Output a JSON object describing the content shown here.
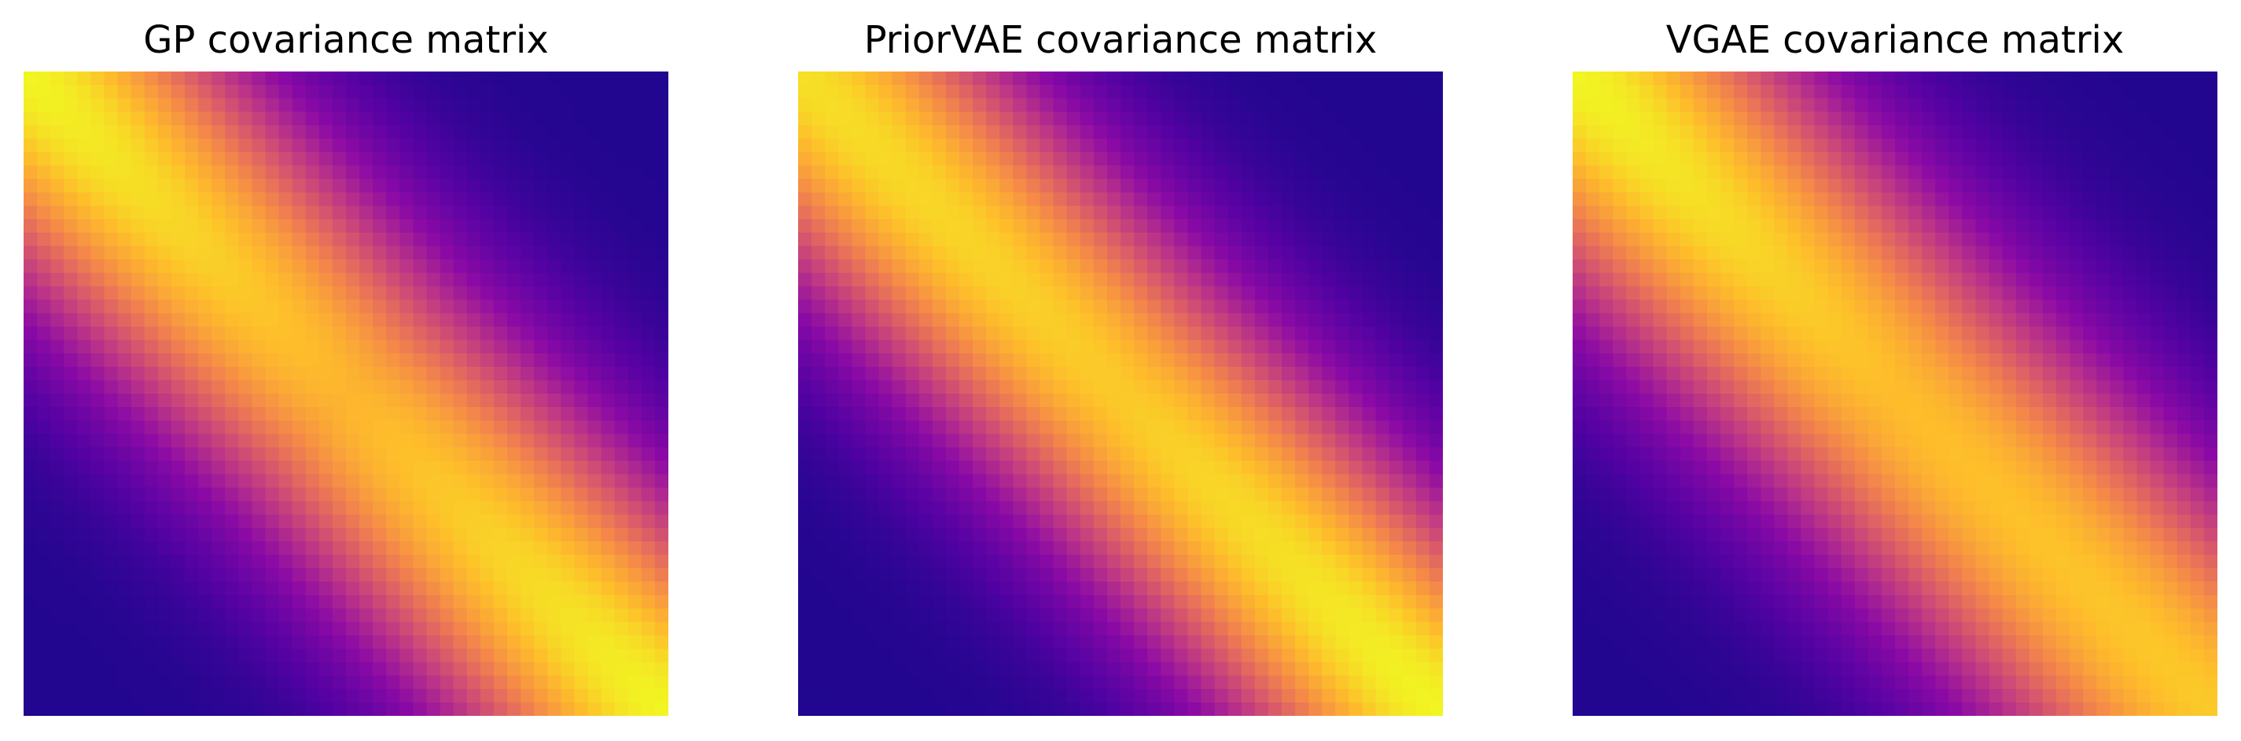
{
  "chart_data": [
    {
      "type": "heatmap",
      "title": "GP covariance matrix",
      "colormap": "plasma",
      "axes_visible": false,
      "matrix_size": 48,
      "value_range": [
        0,
        1
      ],
      "band_width": 0.25,
      "band_strength": [
        0.95,
        0.8,
        0.95
      ]
    },
    {
      "type": "heatmap",
      "title": "PriorVAE covariance matrix",
      "colormap": "plasma",
      "axes_visible": false,
      "matrix_size": 48,
      "value_range": [
        0,
        1
      ],
      "band_width": 0.24,
      "band_strength": [
        0.9,
        0.85,
        0.95
      ]
    },
    {
      "type": "heatmap",
      "title": "VGAE covariance matrix",
      "colormap": "plasma",
      "axes_visible": false,
      "matrix_size": 48,
      "value_range": [
        0,
        1
      ],
      "band_width": 0.26,
      "band_strength": [
        0.95,
        0.82,
        0.85
      ]
    }
  ]
}
